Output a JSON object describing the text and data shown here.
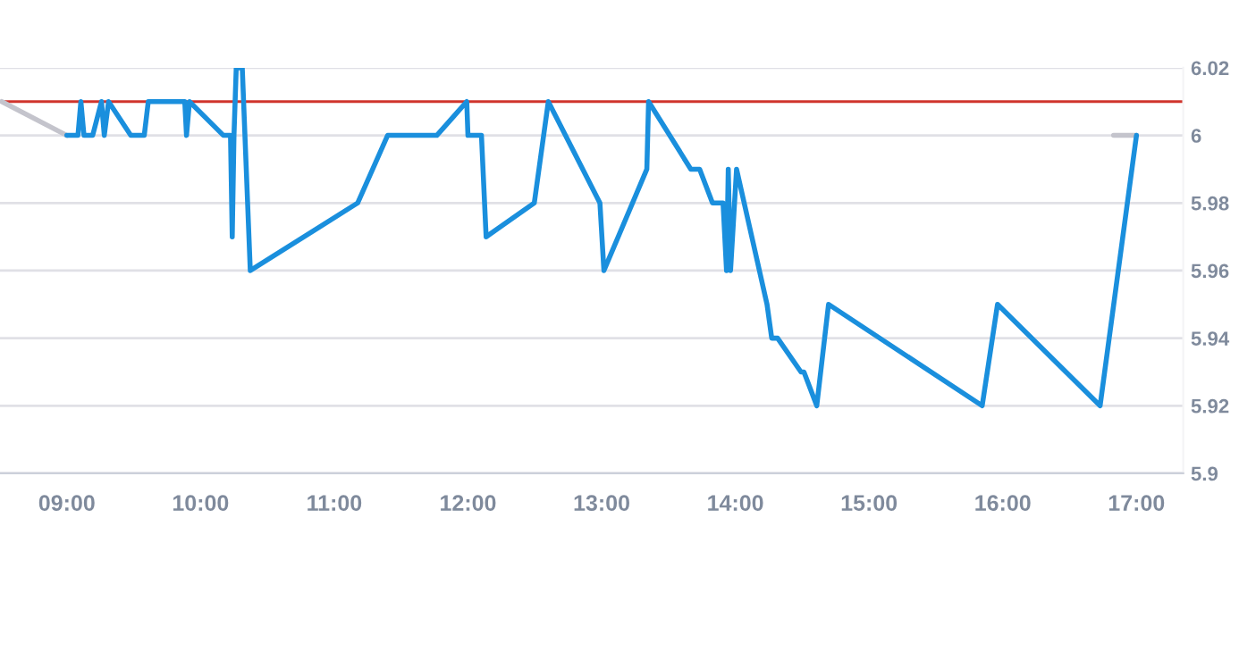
{
  "chart_data": {
    "type": "line",
    "series": [
      {
        "color": "#c4c4cc",
        "x": [
          8.513,
          9.0,
          12.0,
          16.829,
          17.0
        ],
        "values": [
          6.01,
          6.0,
          null,
          6.0,
          6.0
        ]
      },
      {
        "color": "#1a8fdd",
        "x": [
          9.0,
          9.013,
          9.083,
          9.105,
          9.128,
          9.193,
          9.259,
          9.28,
          9.312,
          9.478,
          9.579,
          9.609,
          9.882,
          9.895,
          9.917,
          10.171,
          10.224,
          10.237,
          10.25,
          10.267,
          10.312,
          10.372,
          11.175,
          11.399,
          11.767,
          11.991,
          12.0,
          12.101,
          12.136,
          12.496,
          12.601,
          12.987,
          13.017,
          13.338,
          13.351,
          13.667,
          13.733,
          13.829,
          13.908,
          13.934,
          13.947,
          13.964,
          14.009,
          14.237,
          14.272,
          14.316,
          14.491,
          14.513,
          14.609,
          14.697,
          15.846,
          15.961,
          16.728,
          17.0
        ],
        "values": [
          6.0,
          6.0,
          6.0,
          6.01,
          6.0,
          6.0,
          6.01,
          6.0,
          6.01,
          6.0,
          6.0,
          6.01,
          6.01,
          6.0,
          6.01,
          6.0,
          6.0,
          5.97,
          6.0,
          6.02,
          6.02,
          5.96,
          5.98,
          6.0,
          6.0,
          6.01,
          6.0,
          6.0,
          5.97,
          5.98,
          6.01,
          5.98,
          5.96,
          5.99,
          6.01,
          5.99,
          5.99,
          5.98,
          5.98,
          5.96,
          5.99,
          5.96,
          5.99,
          5.95,
          5.94,
          5.94,
          5.93,
          5.93,
          5.92,
          5.95,
          5.92,
          5.95,
          5.92,
          6.0
        ]
      }
    ],
    "xlim": [
      8.5,
      17.35
    ],
    "xticks": [
      {
        "value": 9,
        "label": "09:00"
      },
      {
        "value": 10,
        "label": "10:00"
      },
      {
        "value": 11,
        "label": "11:00"
      },
      {
        "value": 12,
        "label": "12:00"
      },
      {
        "value": 13,
        "label": "13:00"
      },
      {
        "value": 14,
        "label": "14:00"
      },
      {
        "value": 15,
        "label": "15:00"
      },
      {
        "value": 16,
        "label": "16:00"
      },
      {
        "value": 17,
        "label": "17:00"
      }
    ],
    "ylim": [
      5.9,
      6.02
    ],
    "yticks": [
      5.9,
      5.92,
      5.94,
      5.96,
      5.98,
      6,
      6.02
    ],
    "ref_lines": [
      {
        "axis": "y",
        "value": 6.01,
        "color": "#d0342c"
      }
    ],
    "grid": "y",
    "legend": false
  }
}
